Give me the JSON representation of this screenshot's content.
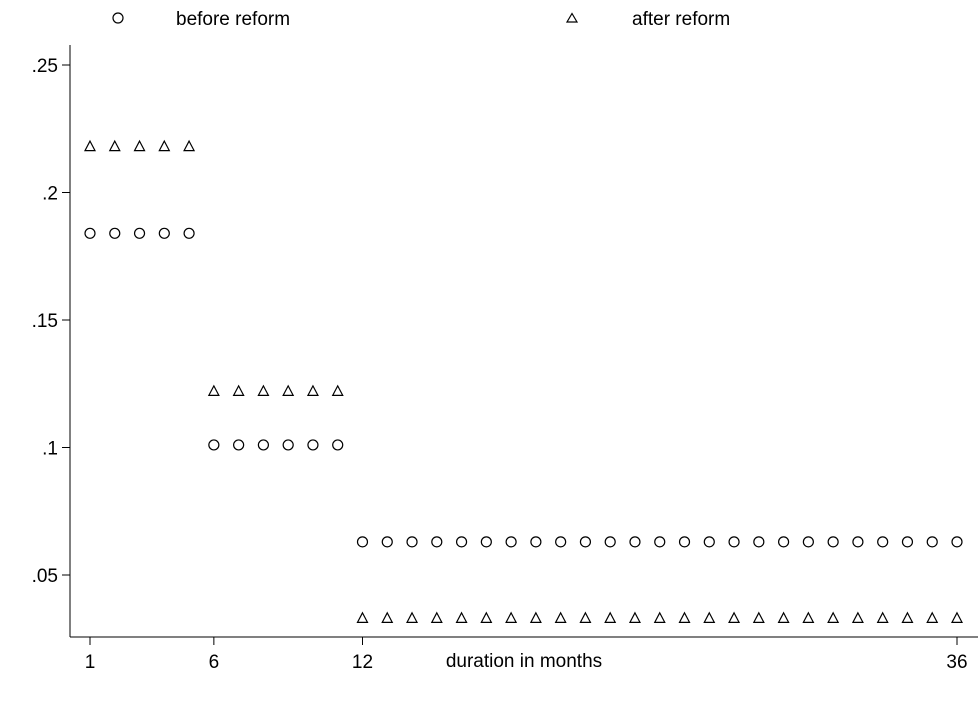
{
  "chart_data": {
    "type": "scatter",
    "title": "",
    "xlabel": "duration in months",
    "ylabel": "",
    "xlim": [
      1,
      36
    ],
    "ylim": [
      0.03,
      0.25
    ],
    "x_ticks": [
      {
        "value": 1,
        "label": "1"
      },
      {
        "value": 6,
        "label": "6"
      },
      {
        "value": 12,
        "label": "12"
      },
      {
        "value": 36,
        "label": "36"
      }
    ],
    "y_ticks": [
      {
        "value": 0.05,
        "label": ".05"
      },
      {
        "value": 0.1,
        "label": ".1"
      },
      {
        "value": 0.15,
        "label": ".15"
      },
      {
        "value": 0.2,
        "label": ".2"
      },
      {
        "value": 0.25,
        "label": ".25"
      }
    ],
    "grid": false,
    "legend_position": "top",
    "series": [
      {
        "name": "before reform",
        "marker": "circle",
        "color": "#000000",
        "segments": [
          {
            "x_from": 1,
            "x_to": 5,
            "y": 0.184
          },
          {
            "x_from": 6,
            "x_to": 11,
            "y": 0.101
          },
          {
            "x_from": 12,
            "x_to": 36,
            "y": 0.063
          }
        ]
      },
      {
        "name": "after reform",
        "marker": "triangle",
        "color": "#000000",
        "segments": [
          {
            "x_from": 1,
            "x_to": 5,
            "y": 0.218
          },
          {
            "x_from": 6,
            "x_to": 11,
            "y": 0.122
          },
          {
            "x_from": 12,
            "x_to": 36,
            "y": 0.033
          }
        ]
      }
    ]
  }
}
